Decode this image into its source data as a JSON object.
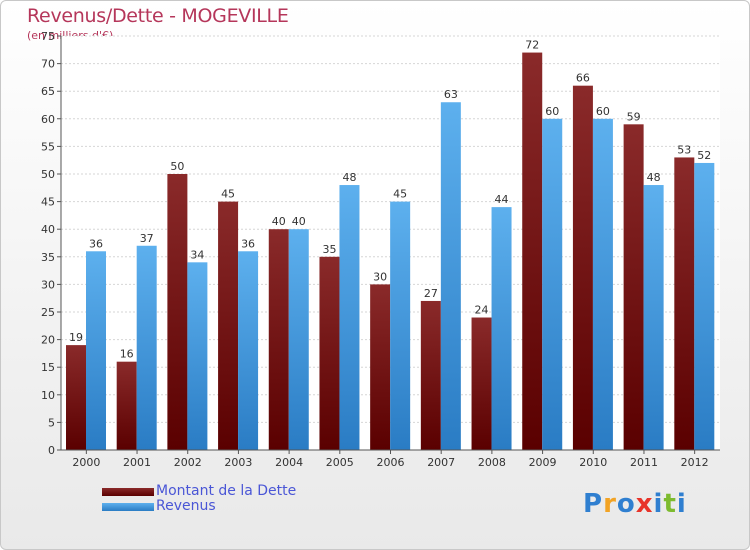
{
  "header": {
    "title": "Revenus/Dette - MOGEVILLE",
    "subtitle": "(en milliers d'€)"
  },
  "legend": {
    "items": [
      {
        "label": "Montant de la Dette",
        "color": "#6e0a0a"
      },
      {
        "label": "Revenus",
        "color": "#4a9fe0"
      }
    ]
  },
  "logo": {
    "text": "Proxiti",
    "letters": [
      {
        "ch": "P",
        "color": "#2f7fd0"
      },
      {
        "ch": "r",
        "color": "#f2a324"
      },
      {
        "ch": "o",
        "color": "#2f7fd0"
      },
      {
        "ch": "x",
        "color": "#e8342a"
      },
      {
        "ch": "i",
        "color": "#2f7fd0"
      },
      {
        "ch": "t",
        "color": "#7dbb2f"
      },
      {
        "ch": "i",
        "color": "#2f7fd0"
      }
    ]
  },
  "chart_data": {
    "type": "bar",
    "title": "Revenus/Dette - MOGEVILLE",
    "subtitle": "(en milliers d'€)",
    "categories": [
      "2000",
      "2001",
      "2002",
      "2003",
      "2004",
      "2005",
      "2006",
      "2007",
      "2008",
      "2009",
      "2010",
      "2011",
      "2012"
    ],
    "series": [
      {
        "name": "Montant de la Dette",
        "color": "#6e0a0a",
        "values": [
          19,
          16,
          50,
          45,
          40,
          35,
          30,
          27,
          24,
          72,
          66,
          59,
          53
        ]
      },
      {
        "name": "Revenus",
        "color": "#4a9fe0",
        "values": [
          36,
          37,
          34,
          36,
          40,
          48,
          45,
          63,
          44,
          60,
          60,
          48,
          52
        ]
      }
    ],
    "ylim": [
      0,
      75
    ],
    "ytick_step": 5,
    "grid": true,
    "legend_position": "bottom-left"
  }
}
